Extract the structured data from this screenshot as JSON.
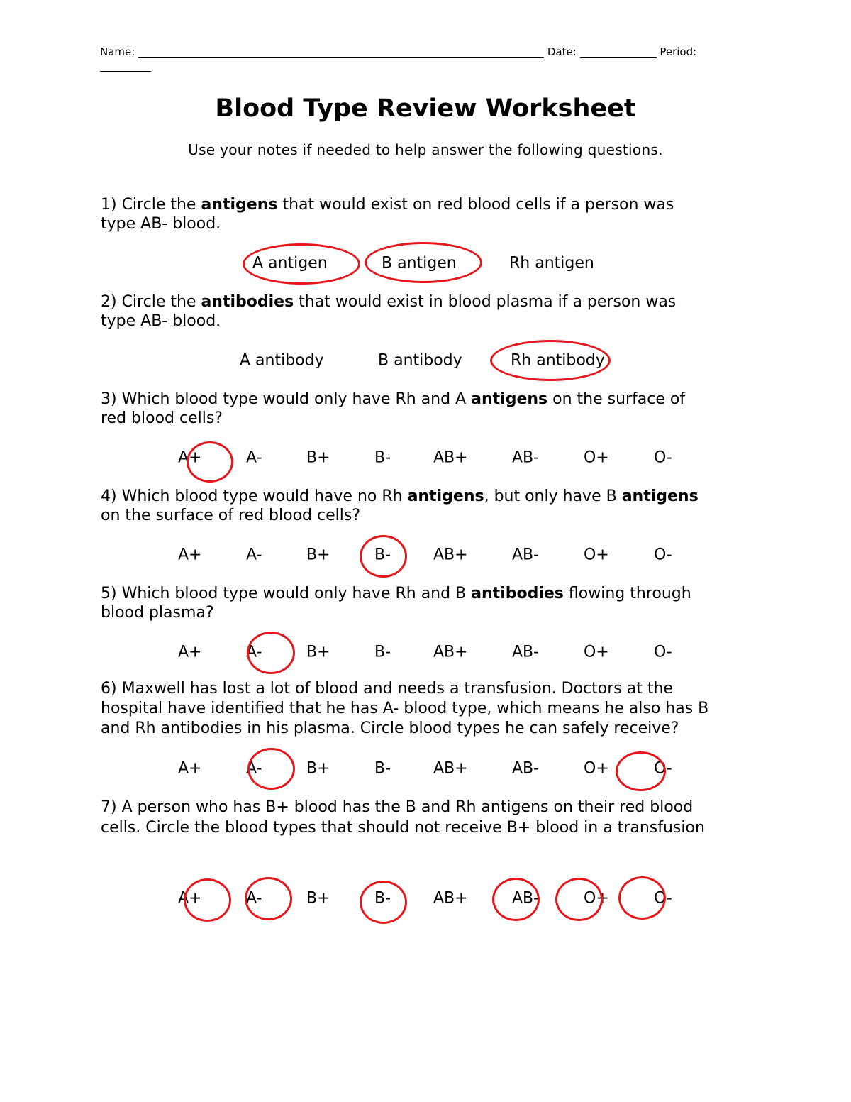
{
  "header": {
    "name_label": "Name:",
    "date_label": "Date:",
    "period_label": "Period:"
  },
  "title": "Blood Type Review Worksheet",
  "subtitle": "Use your notes if needed to help answer the following questions.",
  "q1": {
    "p1": "1) Circle the ",
    "b1": "antigens",
    "p2": " that would exist on red blood cells if a person was",
    "p3": "type AB- blood.",
    "options": [
      {
        "label": "A antigen",
        "circled": true
      },
      {
        "label": "B antigen",
        "circled": true
      },
      {
        "label": "Rh antigen",
        "circled": false
      }
    ]
  },
  "q2": {
    "p1": "2) Circle the ",
    "b1": "antibodies",
    "p2": " that would exist in blood plasma if a person was",
    "p3": "type AB- blood.",
    "options": [
      {
        "label": "A antibody",
        "circled": false
      },
      {
        "label": "B antibody",
        "circled": false
      },
      {
        "label": "Rh antibody",
        "circled": true
      }
    ]
  },
  "q3": {
    "p1": "3) Which blood type would only have Rh and A ",
    "b1": "antigens",
    "p2": " on the surface of",
    "p3": "red blood cells?",
    "circled": [
      "A+"
    ]
  },
  "q4": {
    "p1": "4) Which blood type would have no Rh ",
    "b1": "antigens",
    "p2": ", but only have B ",
    "b2": "antigens",
    "p3": "on the surface of red blood cells?",
    "circled": [
      "B-"
    ]
  },
  "q5": {
    "p1": "5) Which blood type would only have Rh and B ",
    "b1": "antibodies",
    "p2": " flowing through",
    "p3": "blood plasma?",
    "circled": [
      "A-"
    ]
  },
  "q6": {
    "l1": "6) Maxwell has lost a lot of blood and needs a transfusion. Doctors at the",
    "l2": "hospital have identified that he has A- blood type, which means he also has B",
    "l3": "and Rh antibodies in his plasma. Circle blood types he can safely receive?",
    "circled": [
      "A-",
      "O-"
    ]
  },
  "q7": {
    "l1": "7) A person who has B+ blood has the B and Rh antigens on their red blood",
    "l2": "cells. Circle the blood types that should not receive B+ blood in a transfusion",
    "circled": [
      "A+",
      "A-",
      "B-",
      "AB-",
      "O+",
      "O-"
    ]
  },
  "blood_types": [
    "A+",
    "A-",
    "B+",
    "B-",
    "AB+",
    "AB-",
    "O+",
    "O-"
  ],
  "colors": {
    "circle": "#e8161b"
  }
}
